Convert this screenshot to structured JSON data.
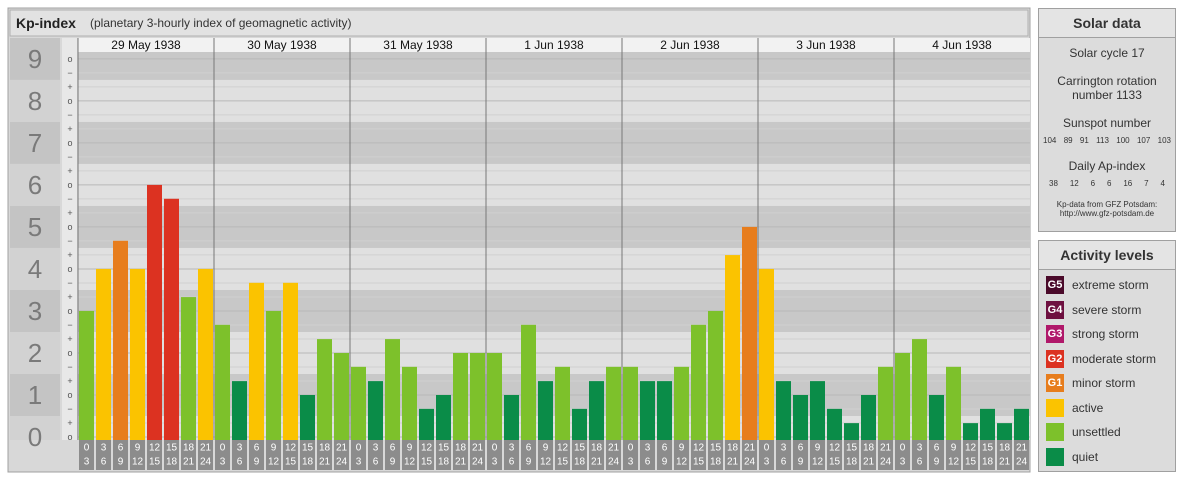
{
  "chart_data": {
    "type": "bar",
    "title": "Kp-index",
    "subtitle": "(planetary 3-hourly index of geomagnetic activity)",
    "days": [
      "29 May 1938",
      "30 May 1938",
      "31 May 1938",
      "1 Jun 1938",
      "2 Jun 1938",
      "3 Jun 1938",
      "4 Jun 1938"
    ],
    "hour_labels": [
      [
        "0",
        "3"
      ],
      [
        "3",
        "6"
      ],
      [
        "6",
        "9"
      ],
      [
        "9",
        "12"
      ],
      [
        "12",
        "15"
      ],
      [
        "15",
        "18"
      ],
      [
        "18",
        "21"
      ],
      [
        "21",
        "24"
      ]
    ],
    "values": [
      3,
      4,
      4.67,
      4,
      6,
      5.67,
      3.33,
      4,
      2.67,
      1.33,
      3.67,
      3,
      3.67,
      1,
      2.33,
      2,
      1.67,
      1.33,
      2.33,
      1.67,
      0.67,
      1,
      2,
      2,
      2,
      1,
      2.67,
      1.33,
      1.67,
      0.67,
      1.33,
      1.67,
      1.67,
      1.33,
      1.33,
      1.67,
      2.67,
      3,
      4.33,
      5,
      4,
      1.33,
      1,
      1.33,
      0.67,
      0.33,
      1,
      1.67,
      2,
      2.33,
      1,
      1.67,
      0.33,
      0.67,
      0.33,
      0.67
    ],
    "colors": [
      "#7dc12b",
      "#fbc300",
      "#e77d1d",
      "#fbc300",
      "#dc3221",
      "#dc3221",
      "#7dc12b",
      "#fbc300",
      "#7dc12b",
      "#0a8c48",
      "#fbc300",
      "#7dc12b",
      "#fbc300",
      "#0a8c48",
      "#7dc12b",
      "#7dc12b",
      "#7dc12b",
      "#0a8c48",
      "#7dc12b",
      "#7dc12b",
      "#0a8c48",
      "#0a8c48",
      "#7dc12b",
      "#7dc12b",
      "#7dc12b",
      "#0a8c48",
      "#7dc12b",
      "#0a8c48",
      "#7dc12b",
      "#0a8c48",
      "#0a8c48",
      "#7dc12b",
      "#7dc12b",
      "#0a8c48",
      "#0a8c48",
      "#7dc12b",
      "#7dc12b",
      "#7dc12b",
      "#fbc300",
      "#e77d1d",
      "#fbc300",
      "#0a8c48",
      "#0a8c48",
      "#0a8c48",
      "#0a8c48",
      "#0a8c48",
      "#0a8c48",
      "#7dc12b",
      "#7dc12b",
      "#7dc12b",
      "#0a8c48",
      "#7dc12b",
      "#0a8c48",
      "#0a8c48",
      "#0a8c48",
      "#0a8c48"
    ],
    "ylim": [
      0,
      9.33
    ],
    "yticks": [
      0,
      1,
      2,
      3,
      4,
      5,
      6,
      7,
      8,
      9
    ],
    "third_marks": {
      "minus": "−",
      "zero": "o",
      "plus": "+"
    }
  },
  "solar_data": {
    "title": "Solar data",
    "cycle": "Solar cycle 17",
    "carrington": "Carrington rotation number 1133",
    "sunspot_title": "Sunspot number",
    "sunspot_values": [
      104,
      89,
      91,
      113,
      100,
      107,
      103
    ],
    "ap_title": "Daily Ap-index",
    "ap_values": [
      38,
      12,
      6,
      6,
      16,
      7,
      4
    ],
    "source": "Kp-data from GFZ Potsdam:",
    "url": "http://www.gfz-potsdam.de"
  },
  "activity_levels": {
    "title": "Activity levels",
    "items": [
      {
        "tag": "G5",
        "label": "extreme storm",
        "color": "#4a0a2a"
      },
      {
        "tag": "G4",
        "label": "severe storm",
        "color": "#6e1040"
      },
      {
        "tag": "G3",
        "label": "strong storm",
        "color": "#b0186a"
      },
      {
        "tag": "G2",
        "label": "moderate storm",
        "color": "#dc3221"
      },
      {
        "tag": "G1",
        "label": "minor storm",
        "color": "#e77d1d"
      },
      {
        "label": "active",
        "color": "#fbc300"
      },
      {
        "label": "unsettled",
        "color": "#7dc12b"
      },
      {
        "label": "quiet",
        "color": "#0a8c48"
      }
    ]
  }
}
